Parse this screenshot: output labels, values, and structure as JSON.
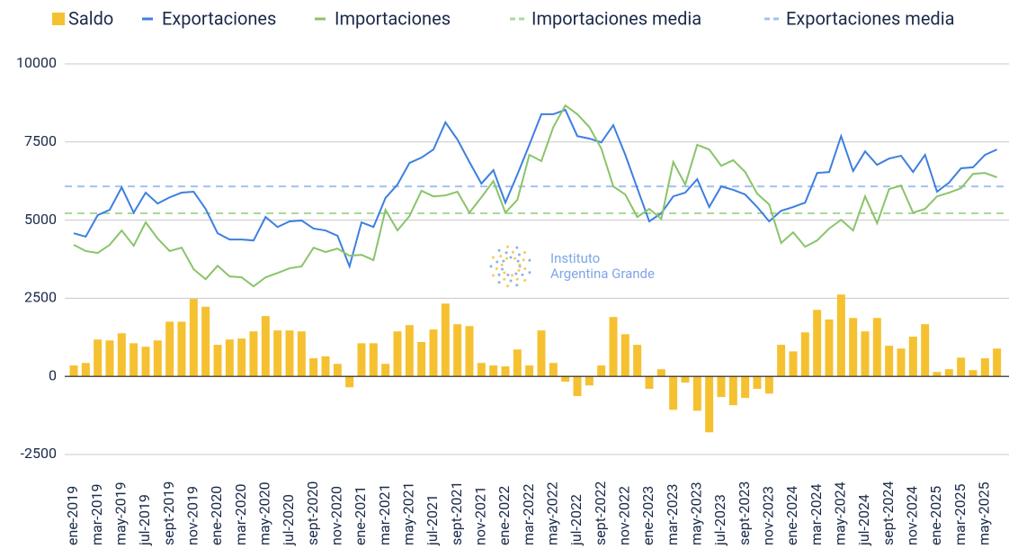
{
  "chart_data": {
    "type": "bar_line",
    "categories": [
      "ene-2019",
      null,
      "mar-2019",
      null,
      "may-2019",
      null,
      "jul-2019",
      null,
      "sept-2019",
      null,
      "nov-2019",
      null,
      "ene-2020",
      null,
      "mar-2020",
      null,
      "may-2020",
      null,
      "jul-2020",
      null,
      "sept-2020",
      null,
      "nov-2020",
      null,
      "ene-2021",
      null,
      "mar-2021",
      null,
      "may-2021",
      null,
      "jul-2021",
      null,
      "sept-2021",
      null,
      "nov-2021",
      null,
      "ene-2022",
      null,
      "mar-2022",
      null,
      "may-2022",
      null,
      "jul-2022",
      null,
      "sept-2022",
      null,
      "nov-2022",
      null,
      "ene-2023",
      null,
      "mar-2023",
      null,
      "may-2023",
      null,
      "jul-2023",
      null,
      "sept-2023",
      null,
      "nov-2023",
      null,
      "ene-2024",
      null,
      "mar-2024",
      null,
      "may-2024",
      null,
      "jul-2024",
      null,
      "sept-2024",
      null,
      "nov-2024",
      null,
      "ene-2025",
      null,
      "mar-2025",
      null,
      "may-2025",
      null
    ],
    "series": [
      {
        "name": "Saldo",
        "kind": "bar",
        "color": "#f5c131",
        "values": [
          350,
          430,
          1180,
          1150,
          1380,
          1060,
          950,
          1150,
          1750,
          1750,
          2480,
          2230,
          1010,
          1180,
          1210,
          1440,
          1930,
          1470,
          1470,
          1440,
          580,
          640,
          400,
          -350,
          1060,
          1060,
          400,
          1440,
          1640,
          1100,
          1500,
          2330,
          1670,
          1610,
          430,
          350,
          320,
          860,
          350,
          1470,
          430,
          -170,
          -630,
          -290,
          350,
          1900,
          1350,
          1010,
          -400,
          230,
          -1070,
          -200,
          -1100,
          -1790,
          -660,
          -920,
          -690,
          -400,
          -550,
          1010,
          800,
          1410,
          2130,
          1820,
          2620,
          1870,
          1440,
          1870,
          980,
          890,
          1270,
          1670,
          140,
          230,
          600,
          200,
          580,
          890
        ]
      },
      {
        "name": "Exportaciones",
        "kind": "line",
        "color": "#3d7fe0",
        "values": [
          4580,
          4470,
          5160,
          5330,
          6050,
          5240,
          5880,
          5530,
          5730,
          5880,
          5910,
          5360,
          4580,
          4380,
          4380,
          4350,
          5100,
          4780,
          4960,
          4990,
          4730,
          4670,
          4500,
          3520,
          4930,
          4780,
          5710,
          6140,
          6830,
          7000,
          7260,
          8130,
          7580,
          6860,
          6170,
          6600,
          5560,
          6460,
          7410,
          8390,
          8390,
          8530,
          7690,
          7610,
          7490,
          8040,
          7090,
          6020,
          4960,
          5220,
          5760,
          5880,
          6310,
          5420,
          6080,
          5970,
          5820,
          5420,
          4960,
          5300,
          5420,
          5560,
          6510,
          6540,
          7690,
          6570,
          7200,
          6770,
          6970,
          7060,
          6540,
          7090,
          5910,
          6200,
          6660,
          6690,
          7090,
          7260
        ]
      },
      {
        "name": "Importaciones",
        "kind": "line",
        "color": "#8ac46a",
        "values": [
          4210,
          4010,
          3950,
          4210,
          4670,
          4180,
          4930,
          4410,
          4010,
          4120,
          3430,
          3110,
          3540,
          3200,
          3170,
          2880,
          3170,
          3310,
          3460,
          3520,
          4120,
          3980,
          4090,
          3860,
          3890,
          3720,
          5330,
          4670,
          5130,
          5940,
          5760,
          5790,
          5910,
          5240,
          5730,
          6250,
          5240,
          5650,
          7090,
          6890,
          7980,
          8670,
          8390,
          7980,
          7290,
          6080,
          5820,
          5100,
          5360,
          5040,
          6860,
          6140,
          7410,
          7260,
          6740,
          6920,
          6540,
          5850,
          5500,
          4270,
          4610,
          4150,
          4350,
          4730,
          5010,
          4670,
          5760,
          4900,
          5990,
          6110,
          5240,
          5360,
          5760,
          5880,
          6020,
          6480,
          6510,
          6370
        ]
      },
      {
        "name": "Importaciones media",
        "kind": "mean",
        "color": "#a9d899",
        "mean": 5220
      },
      {
        "name": "Exportaciones media",
        "kind": "mean",
        "color": "#a3c1f3",
        "mean": 6080
      }
    ],
    "ylim": [
      -2500,
      10000
    ],
    "yticks": [
      -2500,
      0,
      2500,
      5000,
      7500,
      10000
    ],
    "grid": true,
    "watermark": [
      "Instituto",
      "Argentina Grande"
    ]
  }
}
